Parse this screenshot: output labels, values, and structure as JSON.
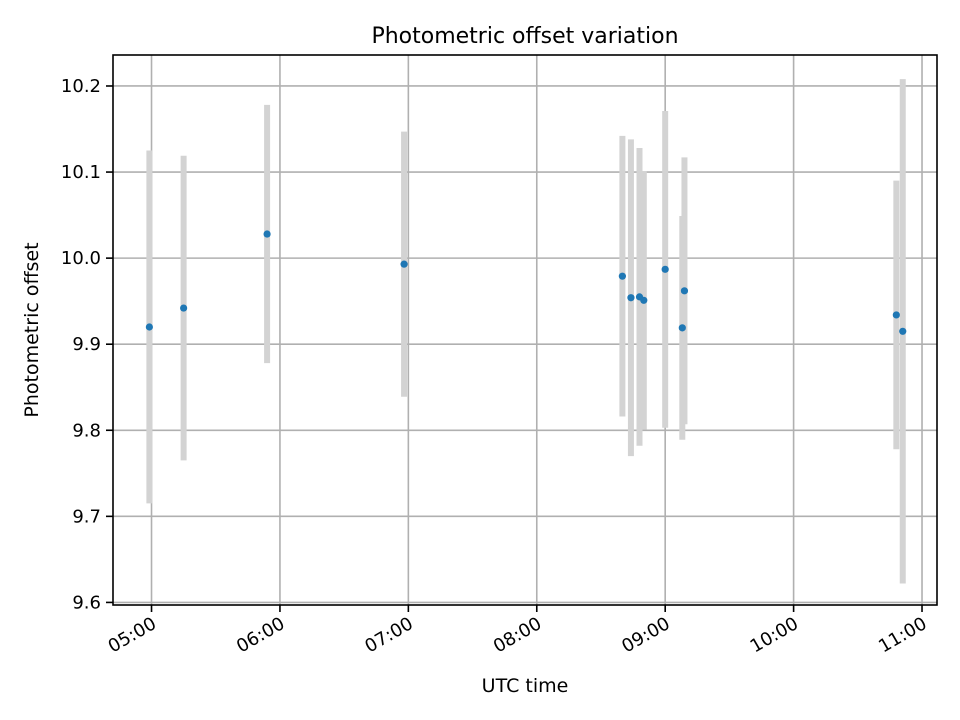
{
  "chart_data": {
    "type": "scatter",
    "title": "Photometric offset variation",
    "xlabel": "UTC time",
    "ylabel": "Photometric offset",
    "xlim": [
      "04:42",
      "11:07"
    ],
    "ylim": [
      9.597,
      10.236
    ],
    "xticks": [
      "05:00",
      "06:00",
      "07:00",
      "08:00",
      "09:00",
      "10:00",
      "11:00"
    ],
    "yticks": [
      "9.6",
      "9.7",
      "9.8",
      "9.9",
      "10.0",
      "10.1",
      "10.2"
    ],
    "grid": true,
    "marker_color": "#1f77b4",
    "errorbar_color": "#d3d3d3",
    "points": [
      {
        "x": "04:59",
        "y": 9.92,
        "err": 0.205
      },
      {
        "x": "05:15",
        "y": 9.942,
        "err": 0.177
      },
      {
        "x": "05:54",
        "y": 10.028,
        "err": 0.15
      },
      {
        "x": "06:58",
        "y": 9.993,
        "err": 0.154
      },
      {
        "x": "08:40",
        "y": 9.979,
        "err": 0.163
      },
      {
        "x": "08:44",
        "y": 9.954,
        "err": 0.184
      },
      {
        "x": "08:48",
        "y": 9.955,
        "err": 0.173
      },
      {
        "x": "08:50",
        "y": 9.951,
        "err": 0.15
      },
      {
        "x": "09:00",
        "y": 9.987,
        "err": 0.184
      },
      {
        "x": "09:08",
        "y": 9.919,
        "err": 0.13
      },
      {
        "x": "09:09",
        "y": 9.962,
        "err": 0.155
      },
      {
        "x": "10:48",
        "y": 9.934,
        "err": 0.156
      },
      {
        "x": "10:51",
        "y": 9.915,
        "err": 0.293
      }
    ]
  }
}
